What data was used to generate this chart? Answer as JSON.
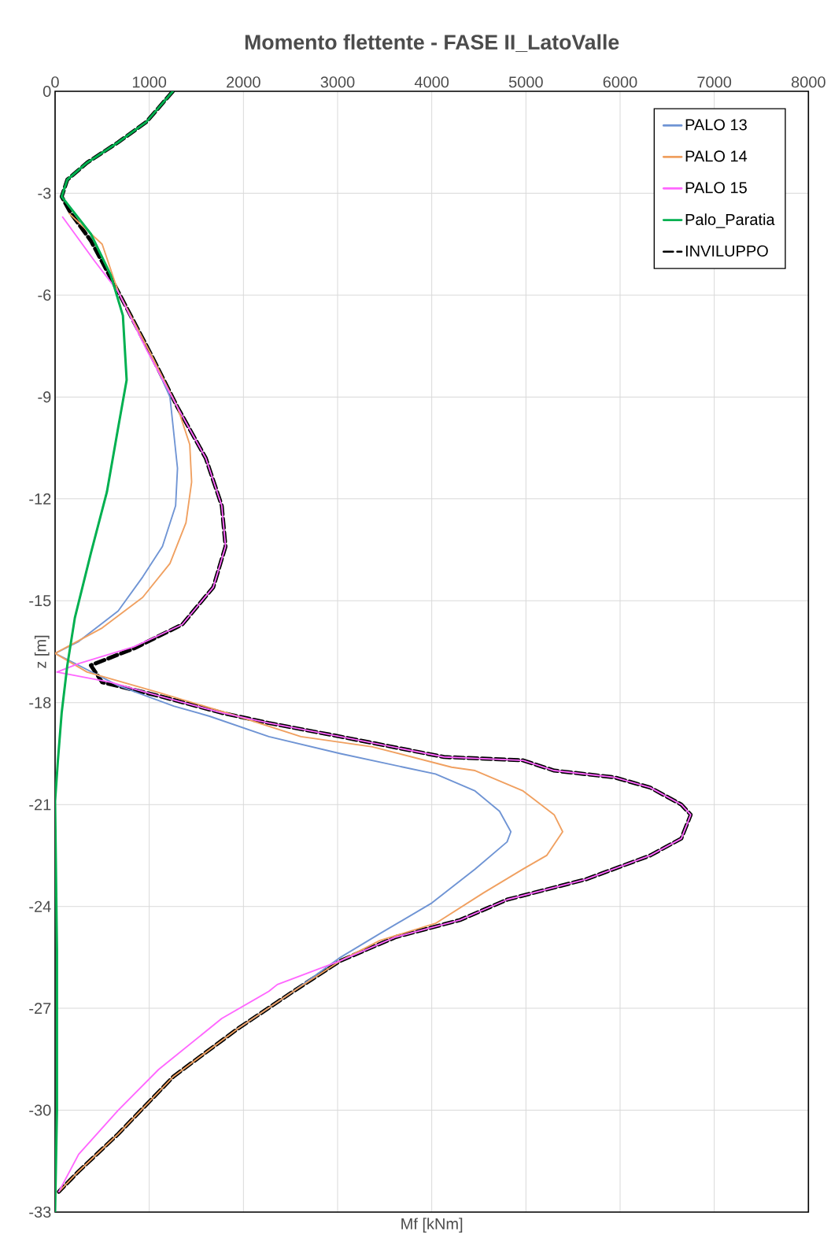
{
  "chart_data": {
    "type": "line",
    "title": "Momento flettente - FASE II_LatoValle",
    "xlabel": "Mf [kNm]",
    "ylabel": "z [m]",
    "xlim": [
      0,
      8000
    ],
    "xticks": [
      0,
      1000,
      2000,
      3000,
      4000,
      5000,
      6000,
      7000,
      8000
    ],
    "ylim": [
      -33,
      0
    ],
    "yticks": [
      -33,
      -30,
      -27,
      -24,
      -21,
      -18,
      -15,
      -12,
      -9,
      -6,
      -3,
      0
    ],
    "grid": true,
    "legend": "top right",
    "marker": "none",
    "series": [
      {
        "name": "PALO 13",
        "color": "#6f94d4",
        "line_style": "solid",
        "x": [
          null,
          null,
          null,
          1010,
          1220,
          1300,
          1280,
          1140,
          930,
          670,
          250,
          0,
          250,
          670,
          1260,
          1640,
          2270,
          3030,
          3700,
          4040,
          4460,
          4720,
          4840,
          4800,
          4460,
          4000,
          3450,
          3030,
          2530,
          1940,
          null,
          null,
          null,
          null
        ],
        "values": [
          null,
          null,
          null,
          -7.7,
          -9.0,
          -11.1,
          -12.2,
          -13.4,
          -14.3,
          -15.3,
          -16.2,
          -16.55,
          -16.9,
          -17.5,
          -18.1,
          -18.4,
          -19.0,
          -19.5,
          -19.9,
          -20.1,
          -20.6,
          -21.2,
          -21.8,
          -22.1,
          -22.9,
          -23.9,
          -24.8,
          -25.5,
          -26.5,
          -27.6,
          null,
          null,
          null,
          null
        ]
      },
      {
        "name": "PALO 14",
        "color": "#f0a060",
        "line_style": "solid",
        "x": [
          150,
          500,
          670,
          1010,
          1300,
          1430,
          1450,
          1390,
          1220,
          930,
          500,
          0,
          340,
          1100,
          1940,
          2610,
          3370,
          4210,
          4460,
          4970,
          5300,
          5390,
          5220,
          4970,
          4550,
          4040,
          3450,
          3030,
          2530,
          1940,
          1260,
          670,
          250,
          40
        ],
        "values": [
          -3.6,
          -4.5,
          -5.9,
          -7.7,
          -9.3,
          -10.4,
          -11.5,
          -12.7,
          -13.9,
          -14.9,
          -15.8,
          -16.55,
          -17.1,
          -17.7,
          -18.4,
          -19.0,
          -19.3,
          -19.9,
          -20.0,
          -20.6,
          -21.3,
          -21.8,
          -22.5,
          -22.9,
          -23.6,
          -24.5,
          -25.0,
          -25.6,
          -26.5,
          -27.6,
          -29.0,
          -30.7,
          -31.8,
          -32.4
        ]
      },
      {
        "name": "PALO 15",
        "color": "#ff66ff",
        "line_style": "solid",
        "x": [
          80,
          420,
          670,
          970,
          1300,
          1600,
          1770,
          1810,
          1680,
          1350,
          840,
          250,
          20,
          590,
          1100,
          1770,
          2270,
          3030,
          4130,
          4970,
          5300,
          5940,
          6320,
          6650,
          6750,
          6650,
          6320,
          5640,
          4800,
          4300,
          3620,
          3030,
          2360,
          2270,
          1770,
          1100,
          670,
          250,
          40
        ],
        "values": [
          -3.7,
          -5.0,
          -5.9,
          -7.6,
          -9.3,
          -10.8,
          -12.2,
          -13.4,
          -14.6,
          -15.7,
          -16.35,
          -16.85,
          -17.1,
          -17.4,
          -17.8,
          -18.3,
          -18.6,
          -19.0,
          -19.6,
          -19.7,
          -20.0,
          -20.2,
          -20.5,
          -21.0,
          -21.3,
          -22.0,
          -22.5,
          -23.2,
          -23.8,
          -24.4,
          -24.9,
          -25.6,
          -26.3,
          -26.5,
          -27.3,
          -28.8,
          -30.0,
          -31.3,
          -32.4
        ]
      },
      {
        "name": "Palo_Paratia",
        "color": "#00b050",
        "line_style": "solid",
        "x": [
          1250,
          970,
          670,
          340,
          130,
          70,
          380,
          590,
          720,
          760,
          670,
          550,
          380,
          210,
          130,
          70,
          30,
          0,
          20,
          20,
          0
        ],
        "values": [
          0,
          -0.9,
          -1.5,
          -2.1,
          -2.6,
          -3.1,
          -4.2,
          -5.4,
          -6.6,
          -8.5,
          -9.9,
          -11.8,
          -13.6,
          -15.5,
          -16.9,
          -18.3,
          -19.7,
          -20.9,
          -25.3,
          -30.0,
          -33.0
        ]
      },
      {
        "name": "INVILUPPO",
        "color": "#000000",
        "line_style": "dashed",
        "x": [
          1250,
          970,
          670,
          340,
          130,
          70,
          170,
          380,
          670,
          1010,
          1300,
          1600,
          1770,
          1810,
          1680,
          1350,
          840,
          380,
          500,
          1100,
          1770,
          2270,
          3030,
          4130,
          4970,
          5300,
          5940,
          6320,
          6650,
          6750,
          6650,
          6320,
          5640,
          4800,
          4300,
          3620,
          3030,
          2530,
          1940,
          1260,
          670,
          250,
          40
        ],
        "values": [
          0,
          -0.9,
          -1.5,
          -2.1,
          -2.6,
          -3.1,
          -3.6,
          -4.4,
          -5.9,
          -7.7,
          -9.3,
          -10.8,
          -12.2,
          -13.4,
          -14.6,
          -15.7,
          -16.4,
          -16.9,
          -17.4,
          -17.8,
          -18.3,
          -18.6,
          -19.0,
          -19.6,
          -19.7,
          -20.0,
          -20.2,
          -20.5,
          -21.0,
          -21.3,
          -22.0,
          -22.5,
          -23.2,
          -23.8,
          -24.4,
          -24.9,
          -25.6,
          -26.5,
          -27.6,
          -29.0,
          -30.7,
          -31.8,
          -32.4
        ]
      }
    ]
  }
}
